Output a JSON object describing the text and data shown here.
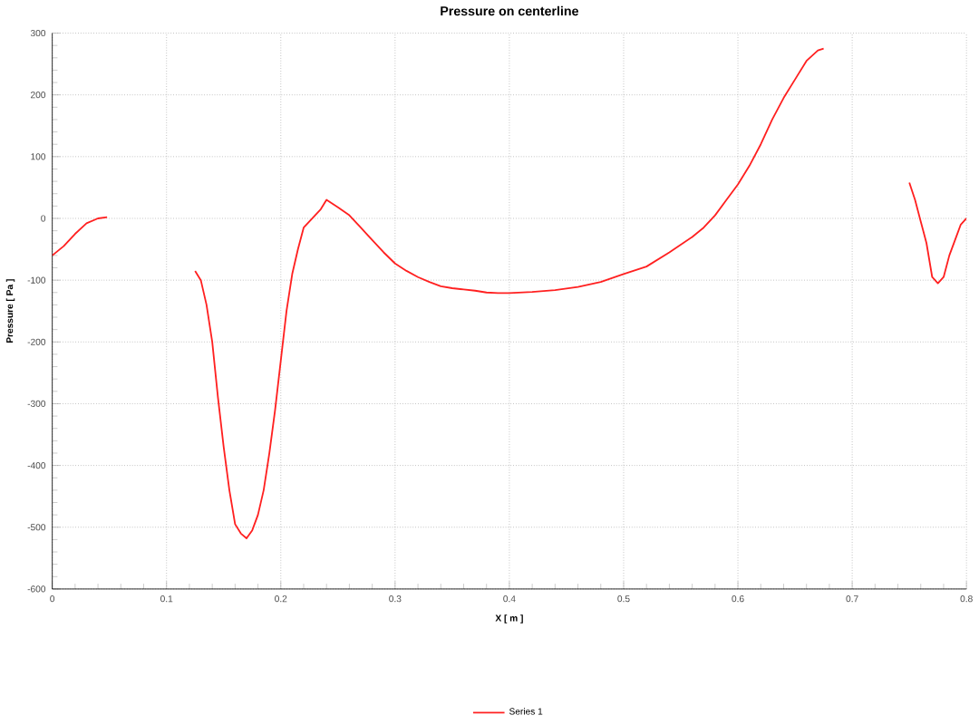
{
  "chart_data": {
    "type": "line",
    "title": "Pressure on centerline",
    "xlabel": "X [ m ]",
    "ylabel": "Pressure [ Pa ]",
    "x": [
      0,
      0.01,
      0.02,
      0.03,
      0.04,
      0.048,
      0.09,
      0.125,
      0.13,
      0.135,
      0.14,
      0.145,
      0.15,
      0.155,
      0.16,
      0.165,
      0.17,
      0.175,
      0.18,
      0.185,
      0.19,
      0.195,
      0.2,
      0.205,
      0.21,
      0.215,
      0.22,
      0.225,
      0.23,
      0.235,
      0.24,
      0.25,
      0.26,
      0.27,
      0.28,
      0.29,
      0.3,
      0.31,
      0.32,
      0.33,
      0.34,
      0.35,
      0.36,
      0.37,
      0.38,
      0.39,
      0.4,
      0.42,
      0.44,
      0.46,
      0.48,
      0.5,
      0.52,
      0.54,
      0.56,
      0.57,
      0.58,
      0.59,
      0.6,
      0.61,
      0.62,
      0.63,
      0.64,
      0.65,
      0.66,
      0.67,
      0.675,
      0.71,
      0.75,
      0.755,
      0.76,
      0.765,
      0.77,
      0.775,
      0.78,
      0.785,
      0.79,
      0.795,
      0.8
    ],
    "series": [
      {
        "name": "Series 1",
        "color": "#ff2020",
        "values": [
          -60,
          -45,
          -25,
          -8,
          0,
          2,
          null,
          -85,
          -100,
          -140,
          -200,
          -290,
          -370,
          -440,
          -495,
          -510,
          -518,
          -505,
          -480,
          -440,
          -380,
          -310,
          -230,
          -150,
          -90,
          -50,
          -15,
          -5,
          5,
          15,
          30,
          18,
          5,
          -15,
          -35,
          -55,
          -73,
          -85,
          -95,
          -103,
          -110,
          -113,
          -115,
          -117,
          -120,
          -121,
          -121,
          -119,
          -116,
          -111,
          -103,
          -90,
          -78,
          -55,
          -30,
          -15,
          5,
          30,
          55,
          85,
          120,
          160,
          195,
          225,
          255,
          272,
          275,
          null,
          58,
          30,
          -5,
          -40,
          -95,
          -105,
          -95,
          -60,
          -35,
          -10,
          0
        ]
      }
    ],
    "xlim": [
      0,
      0.8
    ],
    "ylim": [
      -600,
      300
    ],
    "xticks": [
      0,
      0.1,
      0.2,
      0.3,
      0.4,
      0.5,
      0.6,
      0.7,
      0.8
    ],
    "yticks": [
      -600,
      -500,
      -400,
      -300,
      -200,
      -100,
      0,
      100,
      200,
      300
    ],
    "grid": true,
    "legend": "bottom",
    "marker": "none",
    "line_style": "solid"
  }
}
